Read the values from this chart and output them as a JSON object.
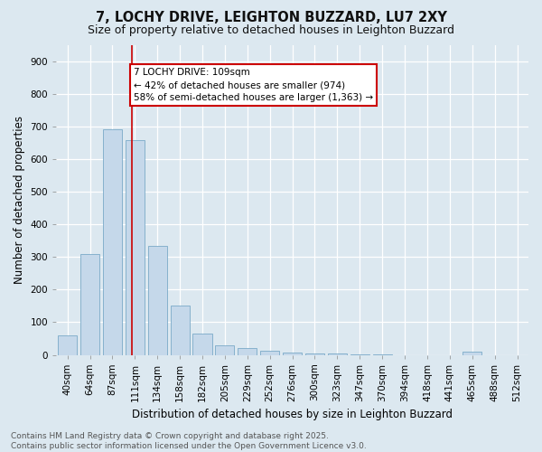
{
  "title": "7, LOCHY DRIVE, LEIGHTON BUZZARD, LU7 2XY",
  "subtitle": "Size of property relative to detached houses in Leighton Buzzard",
  "xlabel": "Distribution of detached houses by size in Leighton Buzzard",
  "ylabel": "Number of detached properties",
  "bar_values": [
    60,
    310,
    693,
    660,
    335,
    152,
    65,
    30,
    20,
    12,
    8,
    5,
    4,
    2,
    1,
    0,
    0,
    0,
    10,
    0,
    0
  ],
  "bar_labels": [
    "40sqm",
    "64sqm",
    "87sqm",
    "111sqm",
    "134sqm",
    "158sqm",
    "182sqm",
    "205sqm",
    "229sqm",
    "252sqm",
    "276sqm",
    "300sqm",
    "323sqm",
    "347sqm",
    "370sqm",
    "394sqm",
    "418sqm",
    "441sqm",
    "465sqm",
    "488sqm",
    "512sqm"
  ],
  "bar_color": "#c5d8ea",
  "bar_edge_color": "#7aaac8",
  "property_line_index": 3,
  "property_line_color": "#cc0000",
  "annotation_text": "7 LOCHY DRIVE: 109sqm\n← 42% of detached houses are smaller (974)\n58% of semi-detached houses are larger (1,363) →",
  "annotation_box_color": "#ffffff",
  "annotation_box_edge": "#cc0000",
  "ylim": [
    0,
    950
  ],
  "yticks": [
    0,
    100,
    200,
    300,
    400,
    500,
    600,
    700,
    800,
    900
  ],
  "background_color": "#dce8f0",
  "grid_color": "#ffffff",
  "footer_text": "Contains HM Land Registry data © Crown copyright and database right 2025.\nContains public sector information licensed under the Open Government Licence v3.0.",
  "title_fontsize": 10.5,
  "subtitle_fontsize": 9,
  "axis_label_fontsize": 8.5,
  "tick_fontsize": 7.5,
  "annotation_fontsize": 7.5,
  "footer_fontsize": 6.5
}
